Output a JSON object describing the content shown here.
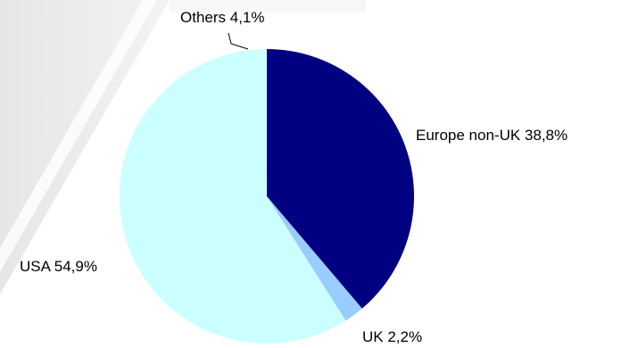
{
  "chart_data": {
    "type": "pie",
    "title": "",
    "slices": [
      {
        "name": "Europe non-UK",
        "value": 38.8,
        "label": "Europe non-UK 38,8%",
        "color": "#000080"
      },
      {
        "name": "UK",
        "value": 2.2,
        "label": "UK 2,2%",
        "color": "#99ccff"
      },
      {
        "name": "USA",
        "value": 54.9,
        "label": "USA 54,9%",
        "color": "#ccffff"
      },
      {
        "name": "Others",
        "value": 4.1,
        "label": "Others 4,1%",
        "color": "#ccffff"
      }
    ],
    "start": "12 o'clock",
    "direction": "clockwise",
    "legend": "none",
    "labels": "outside"
  }
}
